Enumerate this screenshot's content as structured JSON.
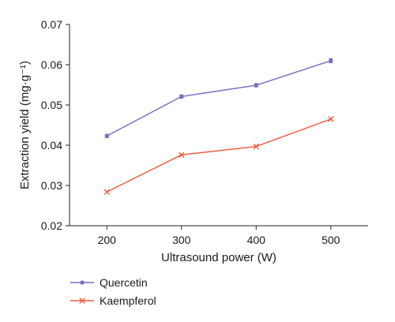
{
  "chart_data": {
    "type": "line",
    "xlabel": "Ultrasound power (W)",
    "ylabel": "Extraction yield (mg·g⁻¹)",
    "x": [
      200,
      300,
      400,
      500
    ],
    "xlim": [
      150,
      550
    ],
    "ylim": [
      0.02,
      0.07
    ],
    "x_ticks": [
      "200",
      "300",
      "400",
      "500"
    ],
    "y_ticks": [
      "0.02",
      "0.03",
      "0.04",
      "0.05",
      "0.06",
      "0.07"
    ],
    "grid": false,
    "legend_position": "bottom-left",
    "series": [
      {
        "name": "Quercetin",
        "values": [
          0.0423,
          0.0521,
          0.0549,
          0.061
        ],
        "error": [
          0.0004,
          0.0004,
          0.0004,
          0.0005
        ],
        "marker": "dot",
        "color": "#7b68c8"
      },
      {
        "name": "Kaempferol",
        "values": [
          0.0284,
          0.0376,
          0.0397,
          0.0465
        ],
        "marker": "x",
        "color": "#f05a3c"
      }
    ]
  }
}
